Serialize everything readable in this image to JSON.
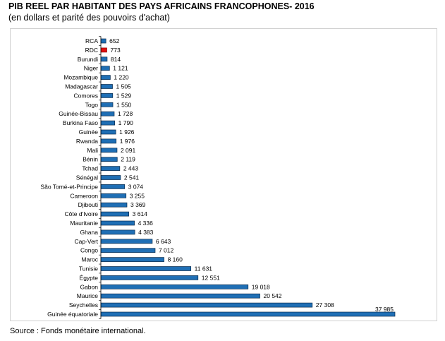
{
  "header": {
    "title": "PIB REEL PAR HABITANT  DES PAYS  AFRICAINS FRANCOPHONES- 2016",
    "subtitle": "(en dollars et parité des pouvoirs d'achat)"
  },
  "footer": {
    "source": "Source : Fonds monétaire international."
  },
  "chart_data": {
    "type": "bar",
    "orientation": "horizontal",
    "grid": false,
    "legend": "none",
    "xlim": [
      0,
      37985
    ],
    "colors": {
      "bar": "#1f6fb5",
      "highlight": "#e01010",
      "bar_edge": "#0a2a4a"
    },
    "highlight_category": "RDC",
    "categories": [
      "RCA",
      "RDC",
      "Burundi",
      "Niger",
      "Mozambique",
      "Madagascar",
      "Comores",
      "Togo",
      "Guinée-Bissau",
      "Burkina Faso",
      "Guinée",
      "Rwanda",
      "Mali",
      "Bénin",
      "Tchad",
      "Sénégal",
      "São Tomé-et-Principe",
      "Cameroon",
      "Djibouti",
      "Côte d'Ivoire",
      "Mauritanie",
      "Ghana",
      "Cap-Vert",
      "Congo",
      "Maroc",
      "Tunisie",
      "Égypte",
      "Gabon",
      "Maurice",
      "Seychelles",
      "Guinée équatoriale"
    ],
    "values": [
      652,
      773,
      814,
      1121,
      1220,
      1505,
      1529,
      1550,
      1728,
      1790,
      1926,
      1976,
      2091,
      2119,
      2443,
      2541,
      3074,
      3255,
      3369,
      3614,
      4336,
      4383,
      6643,
      7012,
      8160,
      11631,
      12551,
      19018,
      20542,
      27308,
      37985
    ],
    "data_labels": [
      "652",
      "773",
      "814",
      "1 121",
      "1 220",
      "1 505",
      "1 529",
      "1 550",
      "1 728",
      "1 790",
      "1 926",
      "1 976",
      "2 091",
      "2 119",
      "2 443",
      "2 541",
      "3 074",
      "3 255",
      "3 369",
      "3 614",
      "4 336",
      "4 383",
      "6 643",
      "7 012",
      "8 160",
      "11 631",
      "12 551",
      "19 018",
      "20 542",
      "27 308",
      "37 985"
    ]
  }
}
